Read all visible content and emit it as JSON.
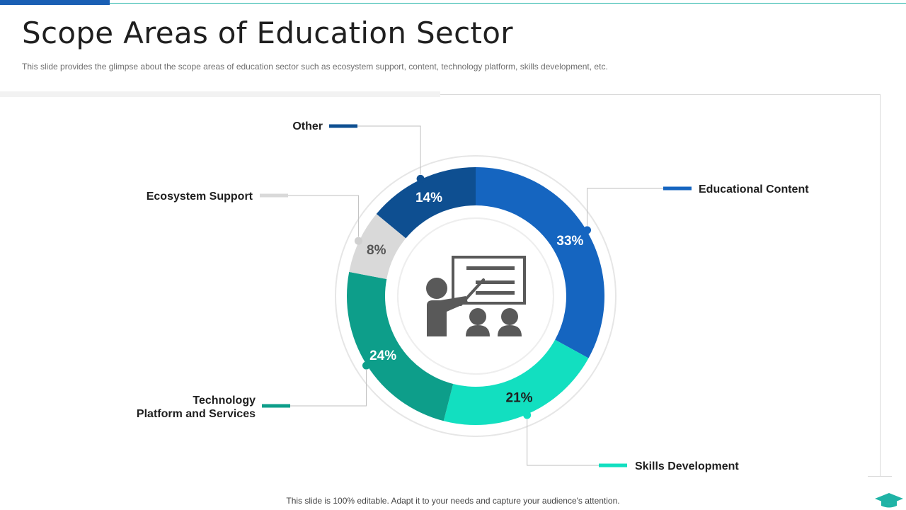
{
  "slide": {
    "title": "Scope Areas of Education Sector",
    "subtitle": "This slide provides the glimpse about the scope areas of education sector such as ecosystem support, content, technology platform, skills development, etc.",
    "footer": "This slide is 100% editable. Adapt it to your needs and capture your audience's attention."
  },
  "icons": {
    "center": "teacher-presentation-icon",
    "corner": "graduation-cap-icon"
  },
  "chart_data": {
    "type": "pie",
    "variant": "donut",
    "unit": "%",
    "slices": [
      {
        "name": "Educational Content",
        "value": 33,
        "label": "33%",
        "color": "#1565c0",
        "label_color": "#ffffff"
      },
      {
        "name": "Skills Development",
        "value": 21,
        "label": "21%",
        "color": "#12dfc0",
        "label_color": "#1f1f1f"
      },
      {
        "name": "Technology\nPlatform and Services",
        "value": 24,
        "label": "24%",
        "color": "#0d9e8a",
        "label_color": "#ffffff"
      },
      {
        "name": "Ecosystem Support",
        "value": 8,
        "label": "8%",
        "color": "#d9d9d9",
        "label_color": "#555555"
      },
      {
        "name": "Other",
        "value": 14,
        "label": "14%",
        "color": "#0e4f91",
        "label_color": "#ffffff"
      }
    ]
  }
}
